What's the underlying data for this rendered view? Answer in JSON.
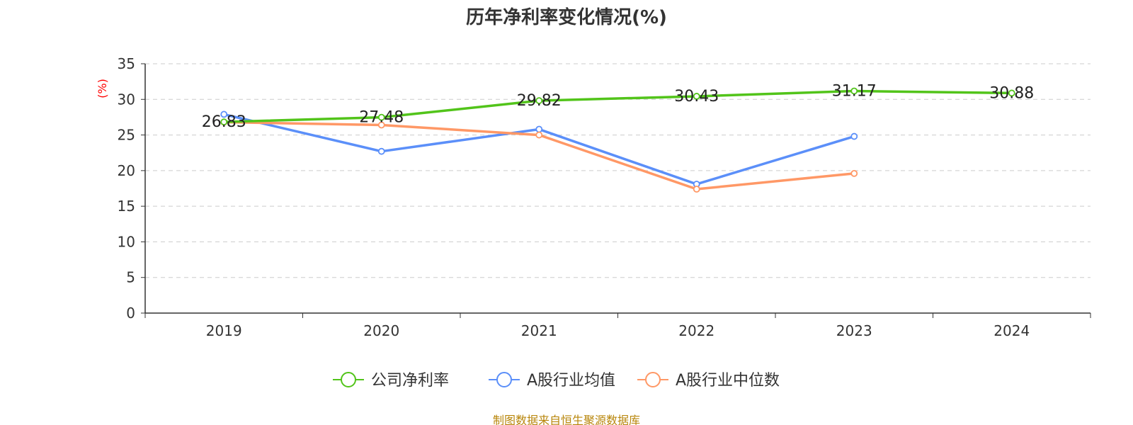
{
  "colors": {
    "company": "#52c41a",
    "industry_avg": "#5b8ff9",
    "industry_median": "#ff9866",
    "grid": "#cccccc",
    "axis": "#333333",
    "unit": "#ff0000",
    "source": "#b8860b"
  },
  "source_text": "制图数据来自恒生聚源数据库",
  "chart_data": {
    "type": "line",
    "title": "历年净利率变化情况(%)",
    "ylabel": "(%)",
    "xlabel": "",
    "categories": [
      "2019",
      "2020",
      "2021",
      "2022",
      "2023",
      "2024"
    ],
    "ylim": [
      0,
      35
    ],
    "yticks": [
      0,
      5,
      10,
      15,
      20,
      25,
      30,
      35
    ],
    "grid": true,
    "legend_position": "bottom-center",
    "series": [
      {
        "name": "公司净利率",
        "key": "company",
        "values": [
          26.83,
          27.48,
          29.82,
          30.43,
          31.17,
          30.88
        ],
        "labels": [
          "26.83",
          "27.48",
          "29.82",
          "30.43",
          "31.17",
          "30.88"
        ]
      },
      {
        "name": "A股行业均值",
        "key": "industry_avg",
        "values": [
          27.9,
          22.7,
          25.8,
          18.1,
          24.8,
          null
        ]
      },
      {
        "name": "A股行业中位数",
        "key": "industry_median",
        "values": [
          26.8,
          26.4,
          25.0,
          17.4,
          19.6,
          null
        ]
      }
    ]
  }
}
